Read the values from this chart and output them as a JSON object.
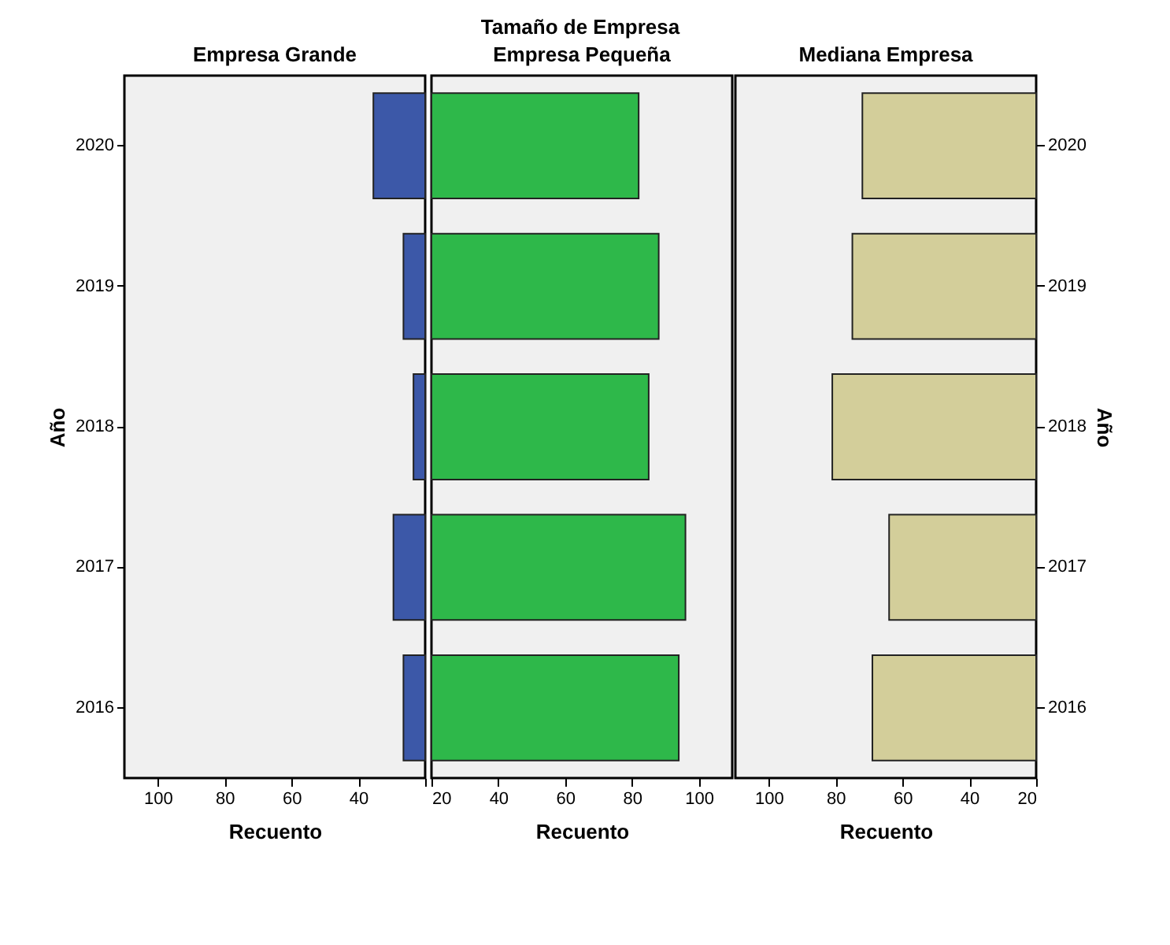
{
  "chart_data": [
    {
      "type": "bar",
      "orientation": "horizontal",
      "subtitle": "Empresa Grande",
      "xlabel": "Recuento",
      "ylabel": "Año",
      "categories": [
        "2020",
        "2019",
        "2018",
        "2017",
        "2016"
      ],
      "values": [
        35.5,
        26.5,
        23.5,
        29.5,
        26.5
      ],
      "color": "#3c58a8",
      "xlim": [
        110,
        20
      ],
      "xticks": [
        100,
        80,
        60,
        40,
        {
          "value": 20,
          "label": null
        }
      ]
    },
    {
      "type": "bar",
      "orientation": "horizontal",
      "title": "Tamaño de Empresa",
      "subtitle": "Empresa Pequeña",
      "xlabel": "Recuento",
      "categories": [
        "2020",
        "2019",
        "2018",
        "2017",
        "2016"
      ],
      "values": [
        82,
        88,
        85,
        96,
        94
      ],
      "color": "#2eb84a",
      "xlim": [
        20,
        110
      ],
      "xticks": [
        20,
        40,
        60,
        80,
        100
      ],
      "tick_labels": "x"
    },
    {
      "type": "bar",
      "orientation": "horizontal",
      "subtitle": "Mediana Empresa",
      "xlabel": "Recuento",
      "ylabel": "Año",
      "categories": [
        "2020",
        "2019",
        "2018",
        "2017",
        "2016"
      ],
      "values": [
        72,
        75,
        81,
        64,
        69
      ],
      "color": "#d3ce9a",
      "xlim": [
        110,
        20
      ],
      "xticks": [
        100,
        80,
        60,
        40,
        20
      ]
    }
  ]
}
